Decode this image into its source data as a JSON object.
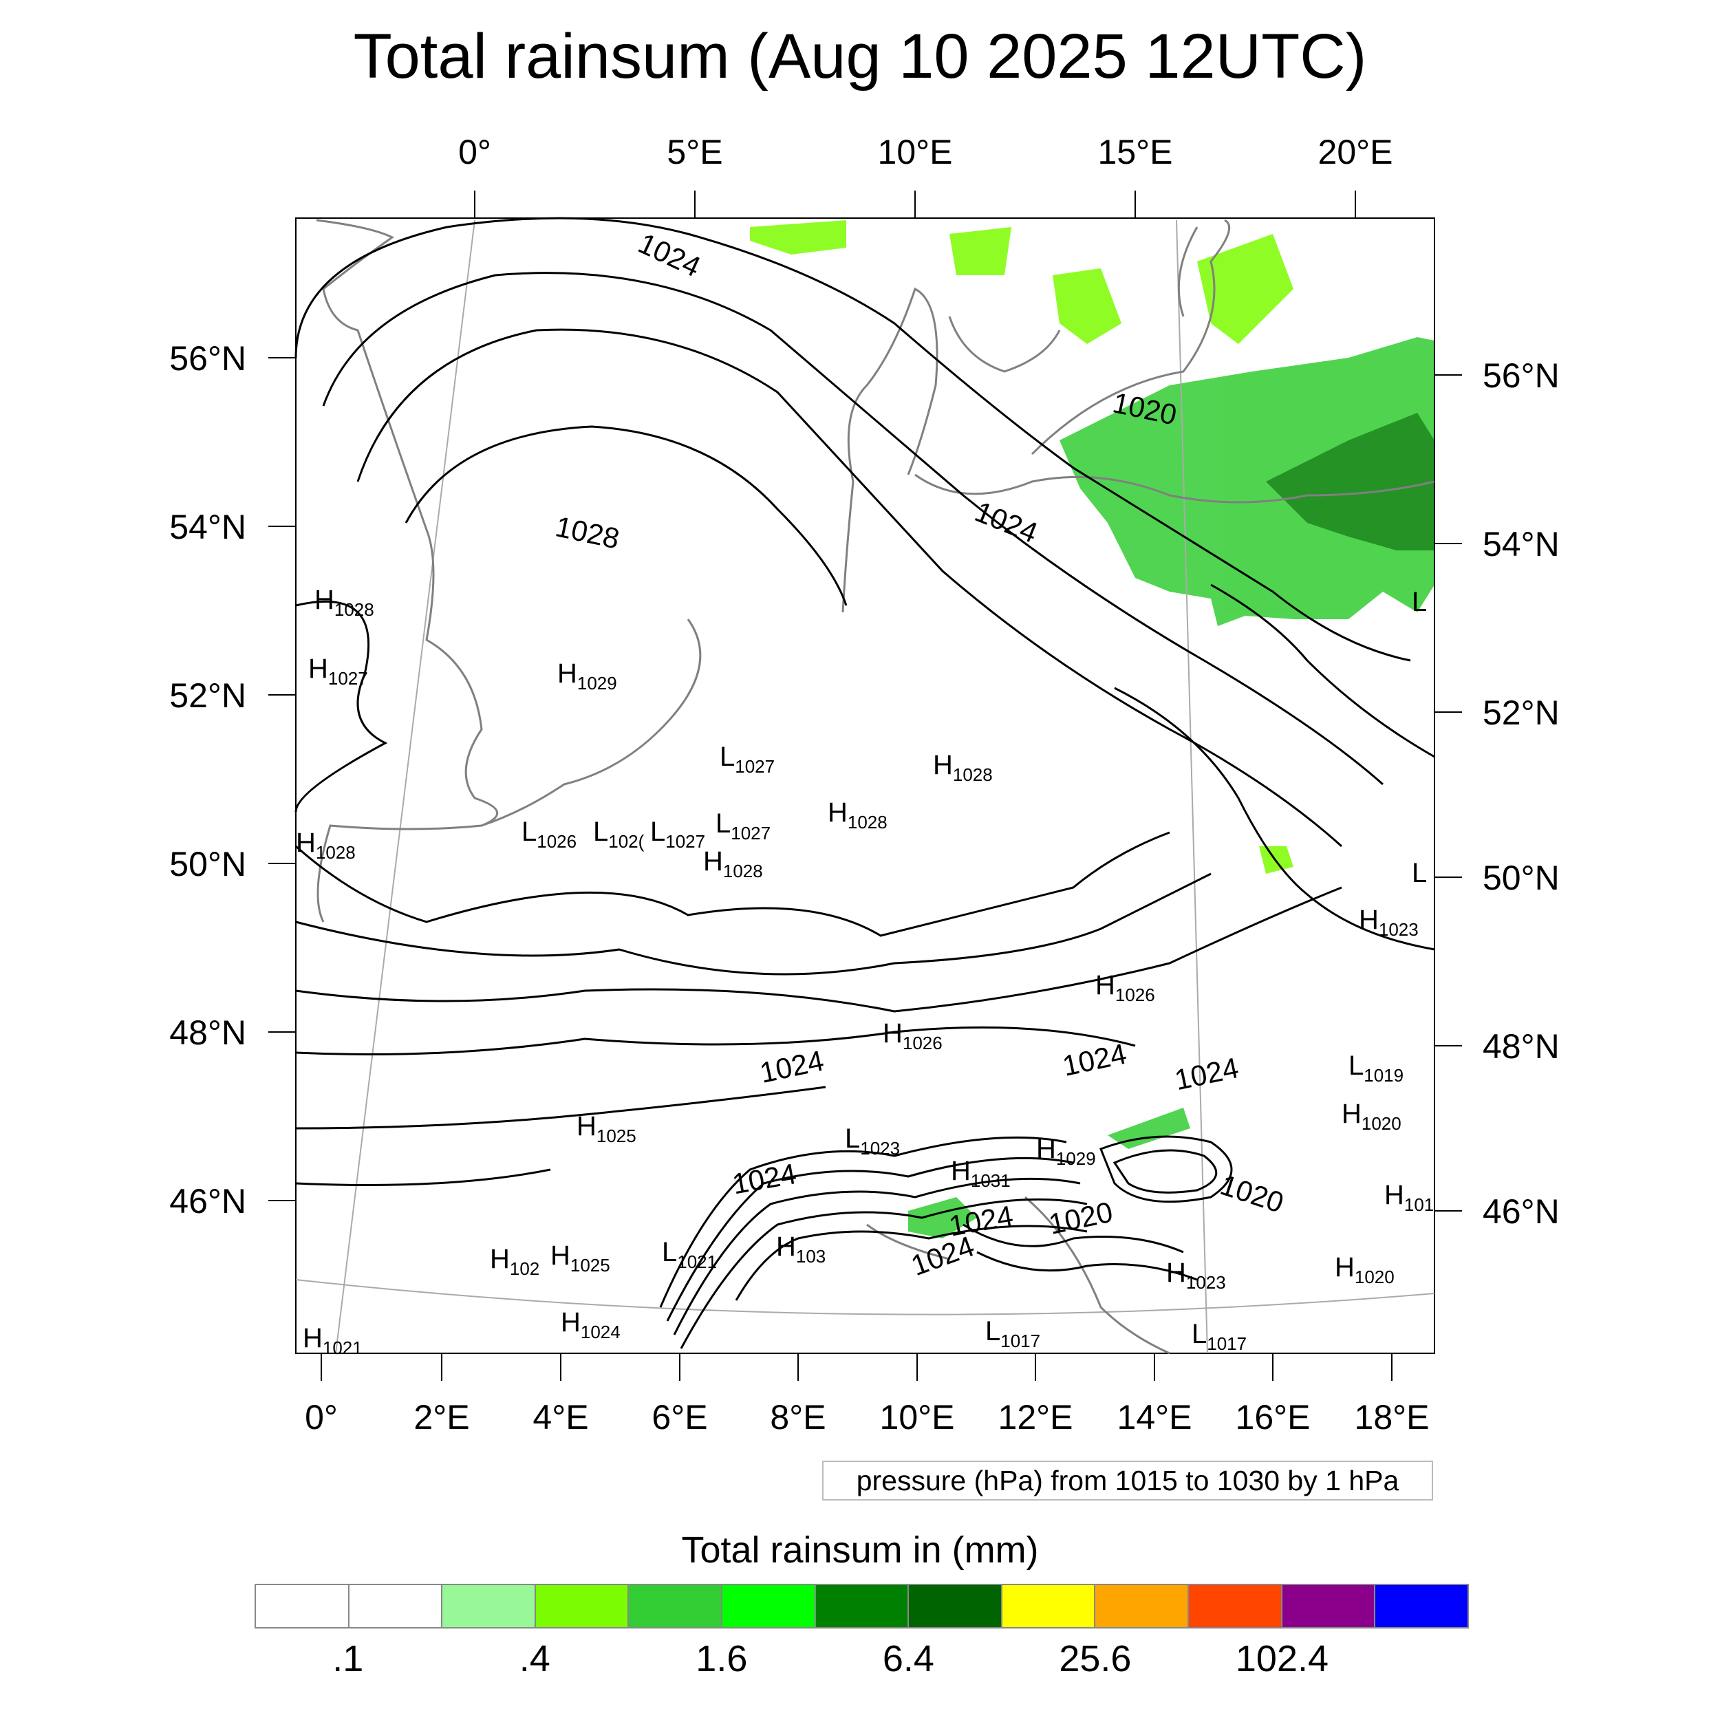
{
  "title": "Total rainsum (Aug 10 2025 12UTC)",
  "top_axis_labels": [
    "0°",
    "5°E",
    "10°E",
    "15°E",
    "20°E"
  ],
  "left_axis_labels": [
    "56°N",
    "54°N",
    "52°N",
    "50°N",
    "48°N",
    "46°N"
  ],
  "right_axis_labels": [
    "56°N",
    "54°N",
    "52°N",
    "50°N",
    "48°N",
    "46°N"
  ],
  "bottom_axis_labels": [
    "0°",
    "2°E",
    "4°E",
    "6°E",
    "8°E",
    "10°E",
    "12°E",
    "14°E",
    "16°E",
    "18°E"
  ],
  "contour_labels": [
    "1024",
    "1028",
    "1020",
    "1024",
    "1024",
    "1024",
    "1024",
    "1024",
    "1020",
    "1024",
    "1020",
    "1024"
  ],
  "pressure_centers": [
    {
      "type": "H",
      "value": "1028"
    },
    {
      "type": "H",
      "value": "1027"
    },
    {
      "type": "H",
      "value": "1029"
    },
    {
      "type": "H",
      "value": "1028"
    },
    {
      "type": "L",
      "value": "1027"
    },
    {
      "type": "H",
      "value": "1028"
    },
    {
      "type": "H",
      "value": "1028"
    },
    {
      "type": "L",
      "value": "1026"
    },
    {
      "type": "L",
      "value": "102("
    },
    {
      "type": "L",
      "value": "1027"
    },
    {
      "type": "L",
      "value": "1027"
    },
    {
      "type": "H",
      "value": "1028"
    },
    {
      "type": "H",
      "value": "1023"
    },
    {
      "type": "H",
      "value": "1026"
    },
    {
      "type": "H",
      "value": "1026"
    },
    {
      "type": "L",
      "value": "1019"
    },
    {
      "type": "H",
      "value": "1020"
    },
    {
      "type": "H",
      "value": "1025"
    },
    {
      "type": "L",
      "value": "1023"
    },
    {
      "type": "H",
      "value": "1029"
    },
    {
      "type": "H",
      "value": "1031"
    },
    {
      "type": "H",
      "value": "101"
    },
    {
      "type": "H",
      "value": "102"
    },
    {
      "type": "H",
      "value": "1025"
    },
    {
      "type": "L",
      "value": "1021"
    },
    {
      "type": "H",
      "value": "103"
    },
    {
      "type": "H",
      "value": "1023"
    },
    {
      "type": "H",
      "value": "1020"
    },
    {
      "type": "H",
      "value": "1024"
    },
    {
      "type": "L",
      "value": "1017"
    },
    {
      "type": "L",
      "value": "1017"
    },
    {
      "type": "H",
      "value": "1021"
    },
    {
      "type": "L",
      "value": ""
    },
    {
      "type": "L",
      "value": ""
    }
  ],
  "contour_note": "pressure (hPa) from 1015 to 1030 by 1 hPa",
  "colorbar": {
    "title": "Total rainsum in (mm)",
    "colors": [
      "#ffffff",
      "#ffffff",
      "#98f898",
      "#7cfc00",
      "#32cd32",
      "#00ff00",
      "#008000",
      "#006400",
      "#ffff00",
      "#ffa500",
      "#ff4500",
      "#8b008b",
      "#0000ff"
    ],
    "labels": [
      ".1",
      ".4",
      "1.6",
      "6.4",
      "25.6",
      "102.4"
    ]
  }
}
